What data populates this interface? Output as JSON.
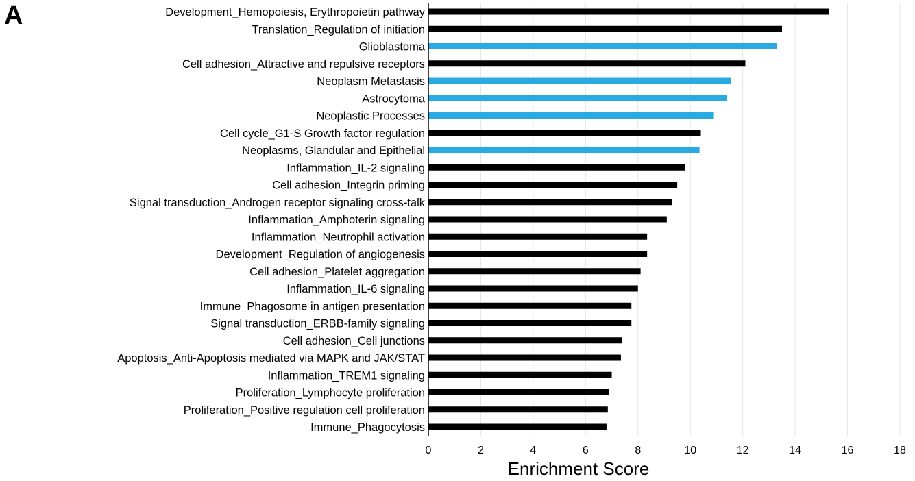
{
  "panel_letter": "A",
  "colors": {
    "default": "#000000",
    "highlight": "#29abe2",
    "grid": "#e6e6e6"
  },
  "chart_data": {
    "type": "bar",
    "orientation": "horizontal",
    "title": "",
    "xlabel": "Enrichment Score",
    "ylabel": "",
    "xlim": [
      0,
      18
    ],
    "xticks": [
      0,
      2,
      4,
      6,
      8,
      10,
      12,
      14,
      16,
      18
    ],
    "grid": "vertical",
    "categories": [
      "Development_Hemopoiesis, Erythropoietin pathway",
      "Translation_Regulation of initiation",
      "Glioblastoma",
      "Cell adhesion_Attractive and repulsive receptors",
      "Neoplasm Metastasis",
      "Astrocytoma",
      "Neoplastic Processes",
      "Cell cycle_G1-S Growth factor regulation",
      "Neoplasms, Glandular and Epithelial",
      "Inflammation_IL-2 signaling",
      "Cell adhesion_Integrin priming",
      "Signal transduction_Androgen receptor signaling cross-talk",
      "Inflammation_Amphoterin signaling",
      "Inflammation_Neutrophil activation",
      "Development_Regulation of angiogenesis",
      "Cell adhesion_Platelet aggregation",
      "Inflammation_IL-6 signaling",
      "Immune_Phagosome in antigen presentation",
      "Signal transduction_ERBB-family signaling",
      "Cell adhesion_Cell junctions",
      "Apoptosis_Anti-Apoptosis mediated via MAPK and JAK/STAT",
      "Inflammation_TREM1 signaling",
      "Proliferation_Lymphocyte proliferation",
      "Proliferation_Positive regulation cell proliferation",
      "Immune_Phagocytosis"
    ],
    "values": [
      15.3,
      13.5,
      13.3,
      12.1,
      11.55,
      11.4,
      10.9,
      10.4,
      10.35,
      9.8,
      9.5,
      9.3,
      9.1,
      8.35,
      8.35,
      8.1,
      8.0,
      7.75,
      7.75,
      7.4,
      7.35,
      7.0,
      6.9,
      6.85,
      6.8
    ],
    "highlighted": [
      false,
      false,
      true,
      false,
      true,
      true,
      true,
      false,
      true,
      false,
      false,
      false,
      false,
      false,
      false,
      false,
      false,
      false,
      false,
      false,
      false,
      false,
      false,
      false,
      false
    ]
  }
}
